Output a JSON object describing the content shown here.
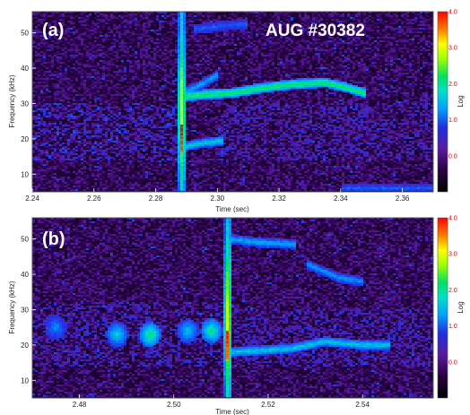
{
  "figure": {
    "shot_label": "AUG #30382"
  },
  "chart_data": [
    {
      "type": "heatmap",
      "panel_label": "(a)",
      "xlabel": "Time (sec)",
      "ylabel": "Frequency (kHz)",
      "xlim": [
        2.24,
        2.37
      ],
      "ylim": [
        5,
        56
      ],
      "x_ticks": [
        "2.24",
        "2.26",
        "2.28",
        "2.30",
        "2.32",
        "2.34",
        "2.36"
      ],
      "y_ticks": [
        "10",
        "20",
        "30",
        "40",
        "50"
      ],
      "colorbar": {
        "label": "Log",
        "range": [
          -1.0,
          4.0
        ],
        "ticks": [
          "4.0",
          "3.0",
          "2.0",
          "1.0",
          "0.0"
        ]
      },
      "features": [
        {
          "name": "burst",
          "x": [
            2.2885
          ],
          "y_range": [
            5,
            56
          ],
          "intensity": 2.4
        },
        {
          "name": "mode",
          "x": [
            2.289,
            2.295,
            2.305,
            2.315,
            2.325,
            2.335,
            2.342,
            2.348
          ],
          "y": [
            32,
            32.5,
            33,
            34.5,
            35.5,
            36,
            34.5,
            33
          ],
          "intensity": 2.0
        },
        {
          "name": "mode",
          "x": [
            2.289,
            2.294,
            2.3
          ],
          "y": [
            33,
            35,
            38
          ],
          "intensity": 1.3
        },
        {
          "name": "mode",
          "x": [
            2.29,
            2.297,
            2.302
          ],
          "y": [
            18,
            19,
            19.5
          ],
          "intensity": 1.5
        },
        {
          "name": "mode",
          "x": [
            2.292,
            2.302,
            2.31
          ],
          "y": [
            51,
            52,
            52.5
          ],
          "intensity": 0.9
        },
        {
          "name": "mode",
          "x": [
            2.34,
            2.36,
            2.37
          ],
          "y": [
            6,
            6,
            6
          ],
          "intensity": 0.9
        },
        {
          "name": "broadband",
          "x_range": [
            2.24,
            2.288
          ],
          "y_range": [
            14,
            30
          ],
          "intensity": 0.9
        },
        {
          "name": "broadband",
          "x_range": [
            2.3,
            2.37
          ],
          "y_range": [
            14,
            30
          ],
          "intensity": 0.7
        }
      ]
    },
    {
      "type": "heatmap",
      "panel_label": "(b)",
      "xlabel": "Time (sec)",
      "ylabel": "Frequency (kHz)",
      "xlim": [
        2.47,
        2.555
      ],
      "ylim": [
        5,
        56
      ],
      "x_ticks": [
        "2.48",
        "2.50",
        "2.52",
        "2.54"
      ],
      "y_ticks": [
        "10",
        "20",
        "30",
        "40",
        "50"
      ],
      "colorbar": {
        "label": "Log",
        "range": [
          -1.0,
          4.0
        ],
        "ticks": [
          "4.0",
          "3.0",
          "2.0",
          "1.0",
          "0.0"
        ]
      },
      "features": [
        {
          "name": "burst",
          "x": [
            2.5115
          ],
          "y_range": [
            5,
            56
          ],
          "intensity": 2.5
        },
        {
          "name": "mode",
          "x": [
            2.512,
            2.518,
            2.526
          ],
          "y": [
            50,
            49,
            48.5
          ],
          "intensity": 1.3
        },
        {
          "name": "mode",
          "x": [
            2.528,
            2.535,
            2.54
          ],
          "y": [
            43,
            39,
            38
          ],
          "intensity": 1.2
        },
        {
          "name": "mode",
          "x": [
            2.512,
            2.525,
            2.532,
            2.54,
            2.546
          ],
          "y": [
            18,
            19,
            21,
            20,
            20
          ],
          "intensity": 1.5
        },
        {
          "name": "blob",
          "x": [
            2.475
          ],
          "y": [
            25
          ],
          "intensity": 1.2
        },
        {
          "name": "blob",
          "x": [
            2.488
          ],
          "y": [
            23
          ],
          "intensity": 1.6
        },
        {
          "name": "blob",
          "x": [
            2.495
          ],
          "y": [
            23
          ],
          "intensity": 2.0
        },
        {
          "name": "blob",
          "x": [
            2.503
          ],
          "y": [
            24
          ],
          "intensity": 1.5
        },
        {
          "name": "blob",
          "x": [
            2.508
          ],
          "y": [
            24
          ],
          "intensity": 1.9
        },
        {
          "name": "broadband",
          "x_range": [
            2.47,
            2.511
          ],
          "y_range": [
            14,
            32
          ],
          "intensity": 0.8
        },
        {
          "name": "broadband",
          "x_range": [
            2.513,
            2.555
          ],
          "y_range": [
            14,
            30
          ],
          "intensity": 0.7
        }
      ]
    }
  ]
}
